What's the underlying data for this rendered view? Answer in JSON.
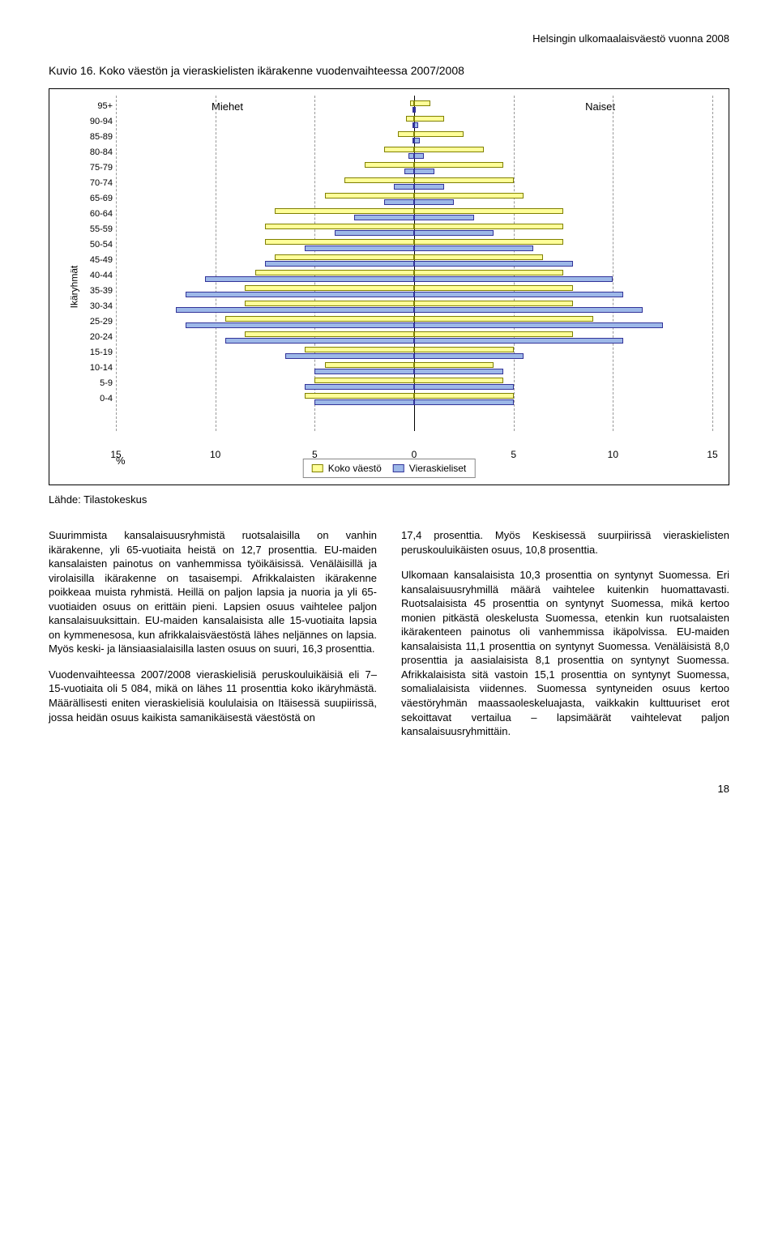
{
  "header": "Helsingin ulkomaalaisväestö vuonna 2008",
  "chart": {
    "title": "Kuvio 16. Koko väestön ja vieraskielisten ikärakenne vuodenvaihteessa 2007/2008",
    "y_axis_label": "Ikäryhmät",
    "left_group_label": "Miehet",
    "right_group_label": "Naiset",
    "xlim": [
      -15,
      15
    ],
    "xticks": [
      15,
      10,
      5,
      0,
      5,
      10,
      15
    ],
    "pct_symbol": "%",
    "legend": {
      "koko": "Koko väestö",
      "vieras": "Vieraskieliset"
    },
    "colors": {
      "koko_fill": "#ffff99",
      "koko_border": "#808000",
      "vieras_fill": "#9db8e8",
      "vieras_border": "#333399",
      "grid": "#999999",
      "center": "#000000",
      "bg": "#ffffff"
    },
    "groups": [
      "95+",
      "90-94",
      "85-89",
      "80-84",
      "75-79",
      "70-74",
      "65-69",
      "60-64",
      "55-59",
      "50-54",
      "45-49",
      "40-44",
      "35-39",
      "30-34",
      "25-29",
      "20-24",
      "15-19",
      "10-14",
      "5-9",
      "0-4"
    ],
    "koko_m": [
      0.2,
      0.4,
      0.8,
      1.5,
      2.5,
      3.5,
      4.5,
      7.0,
      7.5,
      7.5,
      7.0,
      8.0,
      8.5,
      8.5,
      9.5,
      8.5,
      5.5,
      4.5,
      5.0,
      5.5
    ],
    "koko_n": [
      0.8,
      1.5,
      2.5,
      3.5,
      4.5,
      5.0,
      5.5,
      7.5,
      7.5,
      7.5,
      6.5,
      7.5,
      8.0,
      8.0,
      9.0,
      8.0,
      5.0,
      4.0,
      4.5,
      5.0
    ],
    "vk_m": [
      0.05,
      0.1,
      0.1,
      0.3,
      0.5,
      1.0,
      1.5,
      3.0,
      4.0,
      5.5,
      7.5,
      10.5,
      11.5,
      12.0,
      11.5,
      9.5,
      6.5,
      5.0,
      5.5,
      5.0
    ],
    "vk_n": [
      0.1,
      0.2,
      0.3,
      0.5,
      1.0,
      1.5,
      2.0,
      3.0,
      4.0,
      6.0,
      8.0,
      10.0,
      10.5,
      11.5,
      12.5,
      10.5,
      5.5,
      4.5,
      5.0,
      5.0
    ]
  },
  "source": "Lähde: Tilastokeskus",
  "para1": "Suurimmista kansalaisuusryhmistä ruotsalaisilla on vanhin ikärakenne, yli 65-vuotiaita heistä on 12,7 prosenttia. EU-maiden kansalaisten painotus on vanhemmissa työikäisissä. Venäläisillä ja virolaisilla ikärakenne on tasaisempi. Afrikkalaisten ikärakenne poikkeaa muista ryhmistä. Heillä on paljon lapsia ja nuoria ja yli 65-vuotiaiden osuus on erittäin pieni. Lapsien osuus vaihtelee paljon kansalaisuuksittain. EU-maiden kansalaisista alle 15-vuotiaita lapsia on kymmenesosa, kun afrikkalaisväestöstä lähes neljännes on lapsia. Myös keski- ja länsiaasialaisilla lasten osuus on suuri, 16,3 prosenttia.",
  "para2": "Vuodenvaihteessa 2007/2008 vieraskielisiä peruskouluikäisiä eli 7–15-vuotiaita oli 5 084, mikä on lähes 11 prosenttia koko ikäryhmästä. Määrällisesti eniten vieraskielisiä koululaisia on Itäisessä suupiirissä, jossa heidän osuus kaikista samanikäisestä väestöstä on",
  "para3": "17,4 prosenttia. Myös Keskisessä suurpiirissä vieraskielisten peruskouluikäisten osuus, 10,8 prosenttia.",
  "para4": "Ulkomaan kansalaisista 10,3 prosenttia on syntynyt Suomessa. Eri kansalaisuusryhmillä määrä vaihtelee kuitenkin huomattavasti. Ruotsalaisista 45 prosenttia on syntynyt Suomessa, mikä kertoo monien pitkästä oleskelusta Suomessa, etenkin kun ruotsalaisten ikärakenteen painotus oli vanhemmissa ikäpolvissa. EU-maiden kansalaisista 11,1 prosenttia on syntynyt Suomessa. Venäläisistä 8,0 prosenttia ja aasialaisista 8,1 prosenttia on syntynyt Suomessa. Afrikkalaisista sitä vastoin 15,1 prosenttia on syntynyt Suomessa, somalialaisista viidennes. Suomessa syntyneiden osuus kertoo väestöryhmän maassaoleskeluajasta, vaikkakin kulttuuriset erot sekoittavat vertailua – lapsimäärät vaihtelevat paljon kansalaisuusryhmittäin.",
  "page_number": "18"
}
